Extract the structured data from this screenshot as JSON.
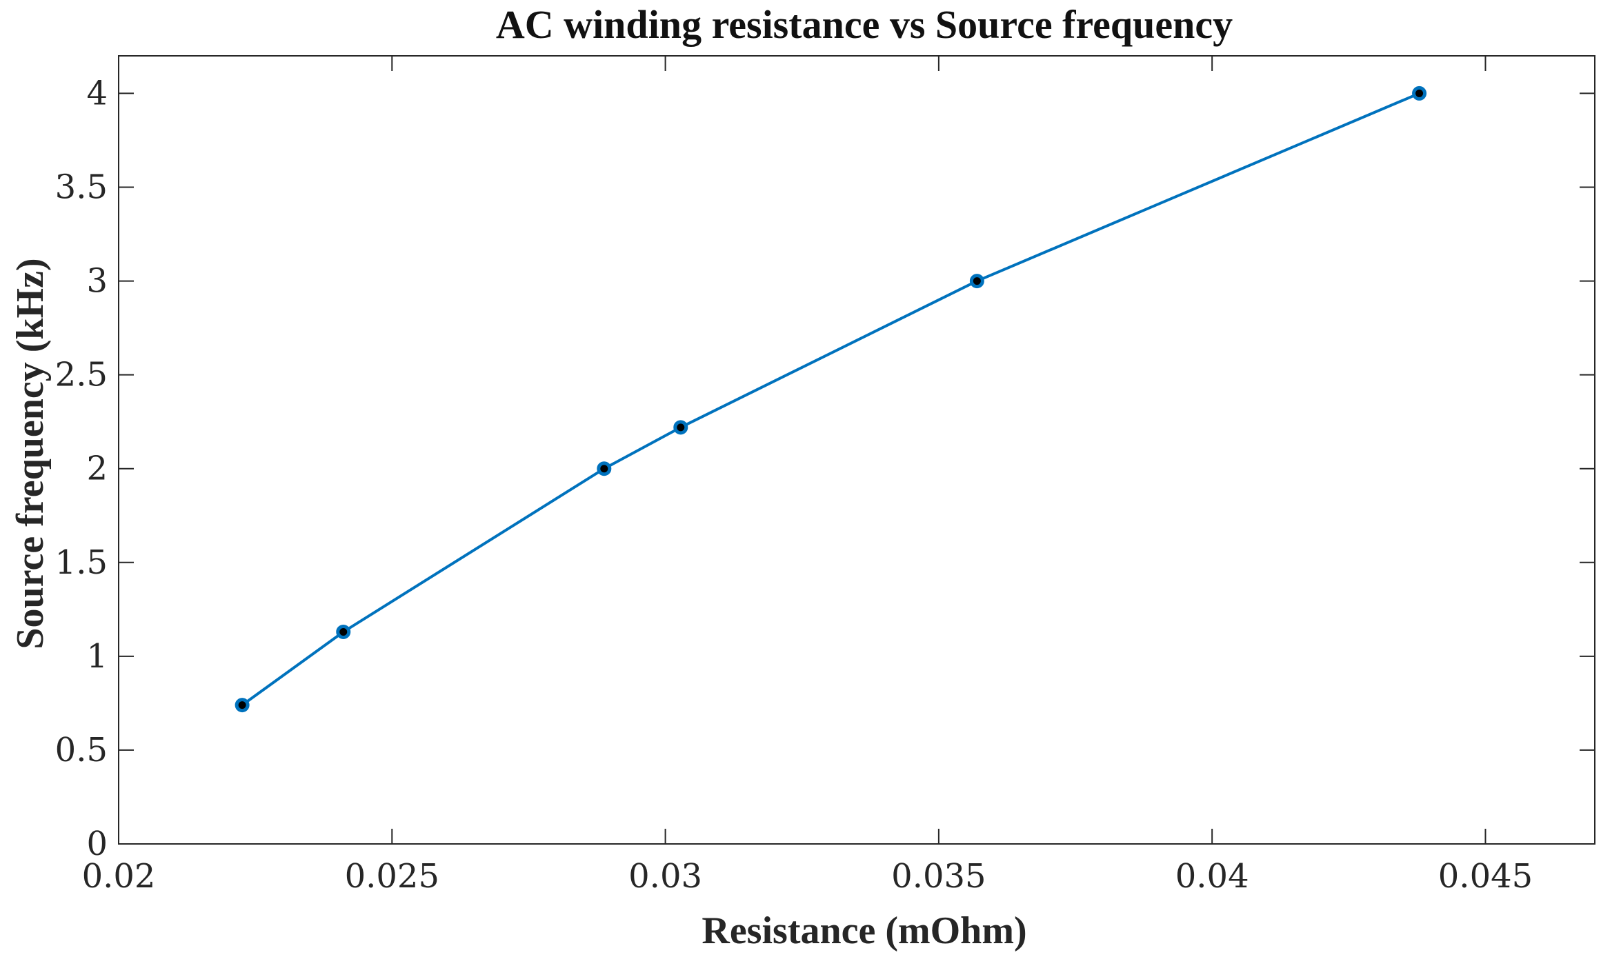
{
  "chart_data": {
    "type": "line",
    "title": "AC winding resistance vs Source frequency",
    "xlabel": "Resistance (mOhm)",
    "ylabel": "Source frequency (kHz)",
    "xlim": [
      0.02,
      0.047
    ],
    "ylim": [
      0,
      4.2
    ],
    "xticks": [
      0.02,
      0.025,
      0.03,
      0.035,
      0.04,
      0.045
    ],
    "xtick_labels": [
      "0.02",
      "0.025",
      "0.03",
      "0.035",
      "0.04",
      "0.045"
    ],
    "yticks": [
      0,
      0.5,
      1,
      1.5,
      2,
      2.5,
      3,
      3.5,
      4
    ],
    "ytick_labels": [
      "0",
      "0.5",
      "1",
      "1.5",
      "2",
      "2.5",
      "3",
      "3.5",
      "4"
    ],
    "grid": false,
    "series": [
      {
        "x": [
          0.02226,
          0.02411,
          0.02888,
          0.03028,
          0.0357,
          0.04379
        ],
        "y": [
          0.74,
          1.13,
          2.0,
          2.22,
          3.0,
          4.0
        ],
        "color": "#0072BD",
        "marker_fill": "#000000"
      }
    ]
  }
}
